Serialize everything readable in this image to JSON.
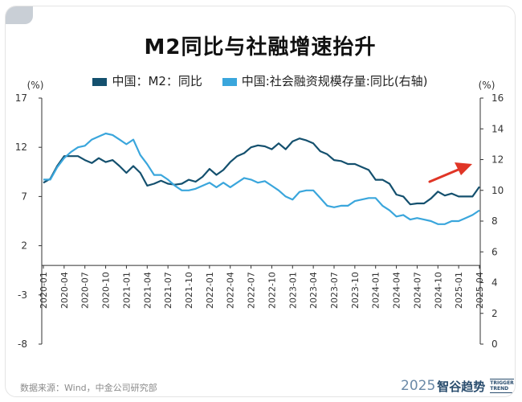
{
  "chart_data": {
    "type": "line",
    "title": "M2同比与社融增速抬升",
    "left_axis": {
      "unit": "(%)",
      "min": -8,
      "max": 17,
      "ticks": [
        -8,
        -3,
        2,
        7,
        12,
        17
      ]
    },
    "right_axis": {
      "unit": "(%)",
      "min": 0,
      "max": 16,
      "ticks": [
        0,
        2,
        4,
        6,
        8,
        10,
        12,
        14,
        16
      ]
    },
    "x_tick_labels": [
      "2020-01",
      "2020-04",
      "2020-07",
      "2020-10",
      "2021-01",
      "2021-04",
      "2021-07",
      "2021-10",
      "2022-01",
      "2022-04",
      "2022-07",
      "2022-10",
      "2023-01",
      "2023-04",
      "2023-07",
      "2023-10",
      "2024-01",
      "2024-04",
      "2024-07",
      "2024-10",
      "2025-01",
      "2025-04"
    ],
    "series": [
      {
        "name": "中国：M2：同比",
        "axis": "left",
        "color": "#14506e",
        "start": "2020-01",
        "values": [
          8.4,
          8.8,
          10.1,
          11.1,
          11.1,
          11.1,
          10.7,
          10.4,
          10.9,
          10.5,
          10.7,
          10.1,
          9.4,
          10.1,
          9.4,
          8.1,
          8.3,
          8.6,
          8.3,
          8.2,
          8.3,
          8.7,
          8.5,
          9.0,
          9.8,
          9.2,
          9.7,
          10.5,
          11.1,
          11.4,
          12.0,
          12.2,
          12.1,
          11.8,
          12.4,
          11.8,
          12.6,
          12.9,
          12.7,
          12.4,
          11.6,
          11.3,
          10.7,
          10.6,
          10.3,
          10.3,
          10.0,
          9.7,
          8.7,
          8.7,
          8.3,
          7.2,
          7.0,
          6.2,
          6.3,
          6.3,
          6.8,
          7.5,
          7.1,
          7.3,
          7.0,
          7.0,
          7.0,
          8.0
        ]
      },
      {
        "name": "中国:社会融资规模存量:同比(右轴)",
        "axis": "right",
        "color": "#3aa6dc",
        "start": "2020-01",
        "values": [
          10.7,
          10.7,
          11.5,
          12.1,
          12.5,
          12.8,
          12.9,
          13.3,
          13.5,
          13.7,
          13.6,
          13.3,
          13.0,
          13.3,
          12.3,
          11.7,
          11.0,
          11.0,
          10.7,
          10.3,
          10.0,
          10.0,
          10.1,
          10.3,
          10.5,
          10.2,
          10.5,
          10.2,
          10.5,
          10.8,
          10.7,
          10.5,
          10.6,
          10.3,
          10.0,
          9.6,
          9.4,
          9.9,
          10.0,
          10.0,
          9.5,
          9.0,
          8.9,
          9.0,
          9.0,
          9.3,
          9.4,
          9.5,
          9.5,
          9.0,
          8.7,
          8.3,
          8.4,
          8.1,
          8.2,
          8.1,
          8.0,
          7.8,
          7.8,
          8.0,
          8.0,
          8.2,
          8.4,
          8.7
        ]
      }
    ],
    "annotations": [
      {
        "type": "arrow",
        "color": "#e03526",
        "meaning": "upward trend"
      }
    ]
  },
  "legend": {
    "m2_label": "中国：M2：同比",
    "tsf_label": "中国:社会融资规模存量:同比(右轴)"
  },
  "colors": {
    "m2": "#14506e",
    "tsf": "#3aa6dc",
    "arrow": "#e03526"
  },
  "footer": {
    "source": "数据来源：Wind，中金公司研究部",
    "brand_year": "2025",
    "brand_name": "智谷趋势",
    "brand_en_1": "TRIGGER",
    "brand_en_2": "TREND"
  }
}
